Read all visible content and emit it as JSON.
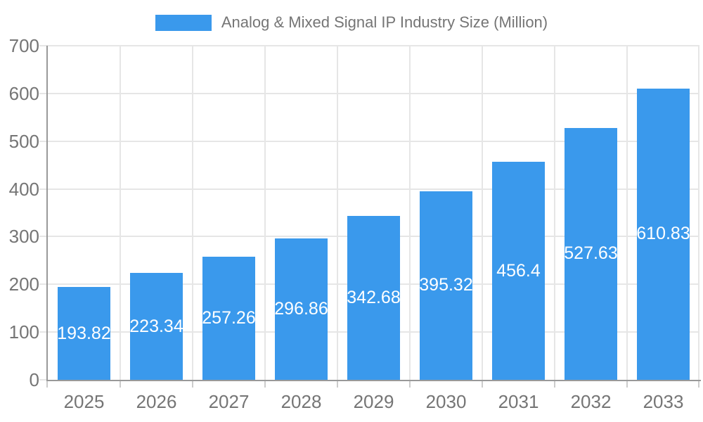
{
  "legend": {
    "label": "Analog & Mixed Signal IP Industry Size (Million)"
  },
  "chart_data": {
    "type": "bar",
    "title": "",
    "xlabel": "",
    "ylabel": "",
    "categories": [
      "2025",
      "2026",
      "2027",
      "2028",
      "2029",
      "2030",
      "2031",
      "2032",
      "2033"
    ],
    "series": [
      {
        "name": "Analog & Mixed Signal IP Industry Size (Million)",
        "values": [
          193.82,
          223.34,
          257.26,
          296.86,
          342.68,
          395.32,
          456.4,
          527.63,
          610.83
        ]
      }
    ],
    "value_labels": [
      "193.82",
      "223.34",
      "257.26",
      "296.86",
      "342.68",
      "395.32",
      "456.4",
      "527.63",
      "610.83"
    ],
    "ylim": [
      0,
      700
    ],
    "yticks": [
      0,
      100,
      200,
      300,
      400,
      500,
      600,
      700
    ],
    "grid": true,
    "legend_position": "top-center",
    "colors": {
      "bar": "#3A99EC",
      "value_label": "#ffffff",
      "axis_line": "#999999",
      "gridline": "#e6e6e6",
      "tick": "#cccccc",
      "axis_text": "#757575",
      "background": "#ffffff"
    }
  }
}
